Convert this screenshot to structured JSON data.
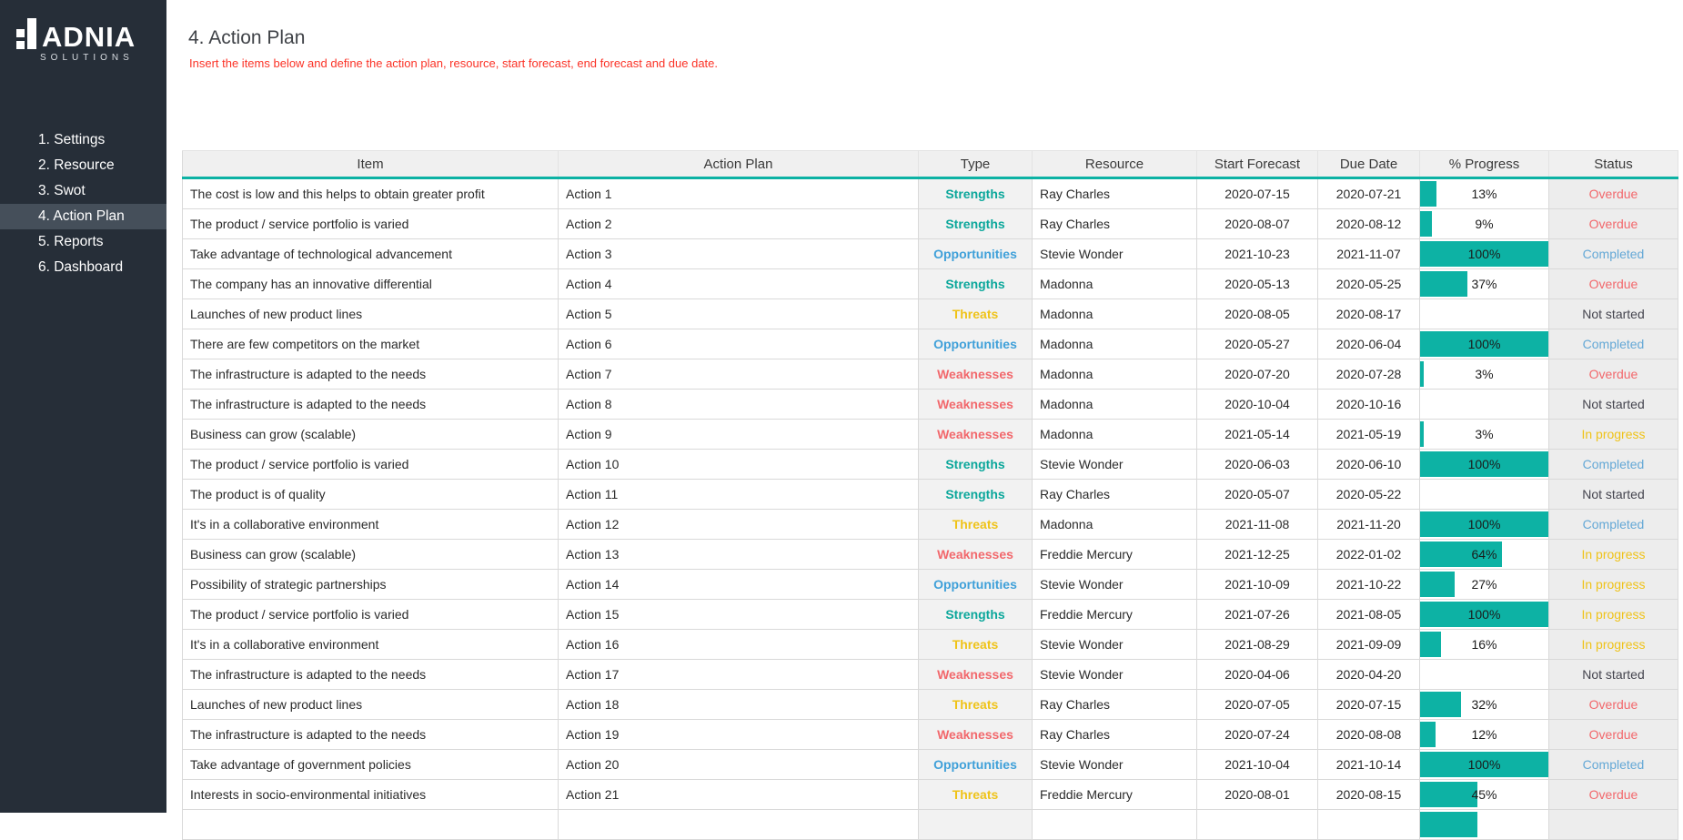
{
  "sidebar": {
    "logo": {
      "brand": "ADNIA",
      "sub": "SOLUTIONS"
    },
    "items": [
      {
        "label": "1. Settings",
        "active": false
      },
      {
        "label": "2. Resource",
        "active": false
      },
      {
        "label": "3. Swot",
        "active": false
      },
      {
        "label": "4. Action Plan",
        "active": true
      },
      {
        "label": "5. Reports",
        "active": false
      },
      {
        "label": "6. Dashboard",
        "active": false
      }
    ]
  },
  "header": {
    "title": "4. Action Plan",
    "note": "Insert the items below and define the action plan, resource, start forecast, end forecast and due date."
  },
  "table": {
    "columns": [
      "Item",
      "Action Plan",
      "Type",
      "Resource",
      "Start Forecast",
      "Due Date",
      "% Progress",
      "Status"
    ],
    "rows": [
      {
        "item": "The cost is low and this helps to obtain greater profit",
        "action": "Action 1",
        "type": "Strengths",
        "resource": "Ray Charles",
        "start": "2020-07-15",
        "due": "2020-07-21",
        "progress": 13,
        "status": "Overdue"
      },
      {
        "item": "The product / service portfolio is varied",
        "action": "Action 2",
        "type": "Strengths",
        "resource": "Ray Charles",
        "start": "2020-08-07",
        "due": "2020-08-12",
        "progress": 9,
        "status": "Overdue"
      },
      {
        "item": "Take advantage of technological advancement",
        "action": "Action 3",
        "type": "Opportunities",
        "resource": "Stevie Wonder",
        "start": "2021-10-23",
        "due": "2021-11-07",
        "progress": 100,
        "status": "Completed"
      },
      {
        "item": "The company has an innovative differential",
        "action": "Action 4",
        "type": "Strengths",
        "resource": "Madonna",
        "start": "2020-05-13",
        "due": "2020-05-25",
        "progress": 37,
        "status": "Overdue"
      },
      {
        "item": "Launches of new product lines",
        "action": "Action 5",
        "type": "Threats",
        "resource": "Madonna",
        "start": "2020-08-05",
        "due": "2020-08-17",
        "progress": null,
        "status": "Not started"
      },
      {
        "item": "There are few competitors on the market",
        "action": "Action 6",
        "type": "Opportunities",
        "resource": "Madonna",
        "start": "2020-05-27",
        "due": "2020-06-04",
        "progress": 100,
        "status": "Completed"
      },
      {
        "item": "The infrastructure is adapted to the needs",
        "action": "Action 7",
        "type": "Weaknesses",
        "resource": "Madonna",
        "start": "2020-07-20",
        "due": "2020-07-28",
        "progress": 3,
        "status": "Overdue"
      },
      {
        "item": "The infrastructure is adapted to the needs",
        "action": "Action 8",
        "type": "Weaknesses",
        "resource": "Madonna",
        "start": "2020-10-04",
        "due": "2020-10-16",
        "progress": null,
        "status": "Not started"
      },
      {
        "item": "Business can grow (scalable)",
        "action": "Action 9",
        "type": "Weaknesses",
        "resource": "Madonna",
        "start": "2021-05-14",
        "due": "2021-05-19",
        "progress": 3,
        "status": "In progress"
      },
      {
        "item": "The product / service portfolio is varied",
        "action": "Action 10",
        "type": "Strengths",
        "resource": "Stevie Wonder",
        "start": "2020-06-03",
        "due": "2020-06-10",
        "progress": 100,
        "status": "Completed"
      },
      {
        "item": "The product is of quality",
        "action": "Action 11",
        "type": "Strengths",
        "resource": "Ray Charles",
        "start": "2020-05-07",
        "due": "2020-05-22",
        "progress": null,
        "status": "Not started"
      },
      {
        "item": "It's in a collaborative environment",
        "action": "Action 12",
        "type": "Threats",
        "resource": "Madonna",
        "start": "2021-11-08",
        "due": "2021-11-20",
        "progress": 100,
        "status": "Completed"
      },
      {
        "item": "Business can grow (scalable)",
        "action": "Action 13",
        "type": "Weaknesses",
        "resource": "Freddie Mercury",
        "start": "2021-12-25",
        "due": "2022-01-02",
        "progress": 64,
        "status": "In progress"
      },
      {
        "item": "Possibility of strategic partnerships",
        "action": "Action 14",
        "type": "Opportunities",
        "resource": "Stevie Wonder",
        "start": "2021-10-09",
        "due": "2021-10-22",
        "progress": 27,
        "status": "In progress"
      },
      {
        "item": "The product / service portfolio is varied",
        "action": "Action 15",
        "type": "Strengths",
        "resource": "Freddie Mercury",
        "start": "2021-07-26",
        "due": "2021-08-05",
        "progress": 100,
        "status": "In progress"
      },
      {
        "item": "It's in a collaborative environment",
        "action": "Action 16",
        "type": "Threats",
        "resource": "Stevie Wonder",
        "start": "2021-08-29",
        "due": "2021-09-09",
        "progress": 16,
        "status": "In progress"
      },
      {
        "item": "The infrastructure is adapted to the needs",
        "action": "Action 17",
        "type": "Weaknesses",
        "resource": "Stevie Wonder",
        "start": "2020-04-06",
        "due": "2020-04-20",
        "progress": null,
        "status": "Not started"
      },
      {
        "item": "Launches of new product lines",
        "action": "Action 18",
        "type": "Threats",
        "resource": "Ray Charles",
        "start": "2020-07-05",
        "due": "2020-07-15",
        "progress": 32,
        "status": "Overdue"
      },
      {
        "item": "The infrastructure is adapted to the needs",
        "action": "Action 19",
        "type": "Weaknesses",
        "resource": "Ray Charles",
        "start": "2020-07-24",
        "due": "2020-08-08",
        "progress": 12,
        "status": "Overdue"
      },
      {
        "item": "Take advantage of government policies",
        "action": "Action 20",
        "type": "Opportunities",
        "resource": "Stevie Wonder",
        "start": "2021-10-04",
        "due": "2021-10-14",
        "progress": 100,
        "status": "Completed"
      },
      {
        "item": "Interests in socio-environmental initiatives",
        "action": "Action 21",
        "type": "Threats",
        "resource": "Freddie Mercury",
        "start": "2020-08-01",
        "due": "2020-08-15",
        "progress": 45,
        "status": "Overdue"
      }
    ],
    "partial_row_progress": 45
  },
  "colors": {
    "accent_teal": "#0DB2A4",
    "type": {
      "Strengths": "#0BA79B",
      "Opportunities": "#3FA0D9",
      "Threats": "#EFC319",
      "Weaknesses": "#F2686C"
    },
    "status": {
      "Overdue": "#F2686C",
      "Completed": "#64A8D6",
      "Not started": "#44444E",
      "In progress": "#EFC319"
    }
  }
}
